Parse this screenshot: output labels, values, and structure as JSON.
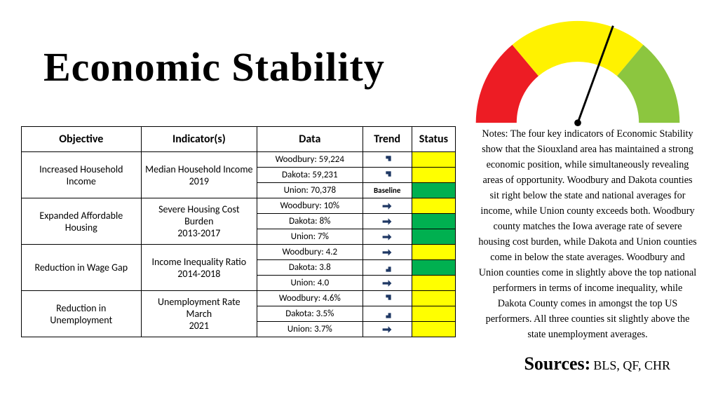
{
  "title": "Economic Stability",
  "gauge": {
    "type": "semicircle-gauge",
    "segments": [
      {
        "color": "#ed1c24",
        "start_deg": 180,
        "end_deg": 130
      },
      {
        "color": "#fff200",
        "start_deg": 130,
        "end_deg": 50
      },
      {
        "color": "#8cc63f",
        "start_deg": 50,
        "end_deg": 0
      }
    ],
    "outer_radius": 150,
    "inner_radius": 90,
    "needle_angle_deg": 70,
    "needle_color": "#000000",
    "background": "#ffffff"
  },
  "table": {
    "headers": {
      "objective": "Objective",
      "indicator": "Indicator(s)",
      "data": "Data",
      "trend": "Trend",
      "status": "Status"
    },
    "status_colors": {
      "yellow": "#ffff00",
      "green": "#00b050"
    },
    "arrow_color": "#1f3864",
    "groups": [
      {
        "objective": "Increased Household Income",
        "indicator": "Median Household Income 2019",
        "rows": [
          {
            "data": "Woodbury: 59,224",
            "trend": "up",
            "status": "yellow"
          },
          {
            "data": "Dakota: 59,231",
            "trend": "up",
            "status": "yellow"
          },
          {
            "data": "Union: 70,378",
            "trend": "baseline",
            "status": "green"
          }
        ]
      },
      {
        "objective": "Expanded Affordable Housing",
        "indicator": "Severe Housing Cost Burden 2013-2017",
        "rows": [
          {
            "data": "Woodbury: 10%",
            "trend": "flat",
            "status": "yellow"
          },
          {
            "data": "Dakota: 8%",
            "trend": "flat",
            "status": "green"
          },
          {
            "data": "Union: 7%",
            "trend": "flat",
            "status": "green"
          }
        ]
      },
      {
        "objective": "Reduction in Wage Gap",
        "indicator": "Income Inequality Ratio 2014-2018",
        "rows": [
          {
            "data": "Woodbury: 4.2",
            "trend": "flat",
            "status": "yellow"
          },
          {
            "data": "Dakota: 3.8",
            "trend": "down",
            "status": "green"
          },
          {
            "data": "Union: 4.0",
            "trend": "flat",
            "status": "yellow"
          }
        ]
      },
      {
        "objective": "Reduction in Unemployment",
        "indicator": "Unemployment Rate March 2021",
        "rows": [
          {
            "data": "Woodbury: 4.6%",
            "trend": "up",
            "status": "yellow"
          },
          {
            "data": "Dakota: 3.5%",
            "trend": "down",
            "status": "yellow"
          },
          {
            "data": "Union: 3.7%",
            "trend": "flat",
            "status": "yellow"
          }
        ]
      }
    ]
  },
  "notes": "Notes: The four key indicators of Economic Stability show that the Siouxland area has maintained a strong economic position, while simultaneously revealing areas of opportunity. Woodbury and Dakota counties sit right below the state and national averages for income, while Union county exceeds both. Woodbury county matches the Iowa average rate of severe housing cost burden, while Dakota and Union counties come in below the state averages. Woodbury and Union counties come in slightly above the top national performers in terms of income inequality, while Dakota County comes in amongst the top US performers. All three counties sit slightly above the state unemployment averages.",
  "sources": {
    "label": "Sources:",
    "value": "BLS, QF, CHR"
  },
  "typography": {
    "title_font": "Brush Script MT",
    "title_size_pt": 44,
    "body_font": "Georgia",
    "table_font": "Calibri"
  }
}
